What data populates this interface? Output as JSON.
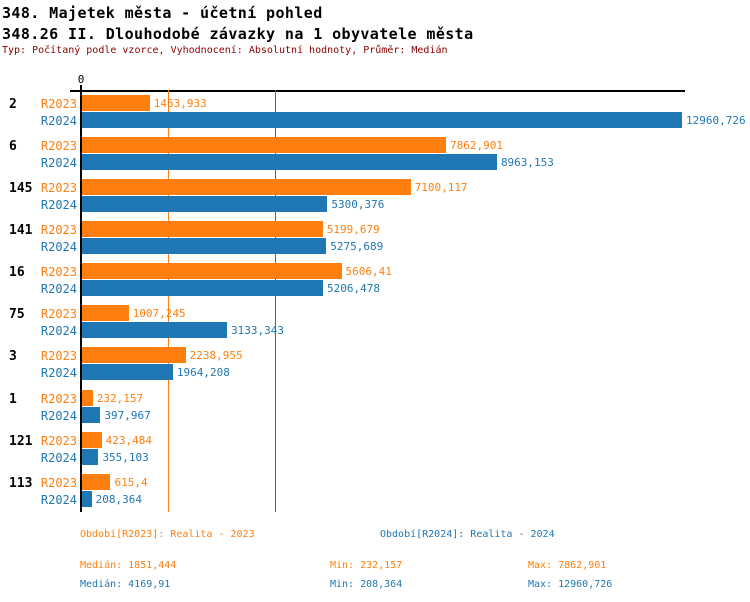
{
  "header": {
    "title": "348. Majetek města - účetní pohled",
    "subtitle": "348.26 II. Dlouhodobé závazky na 1 obyvatele města",
    "type_line": "Typ: Počítaný podle vzorce, Vyhodnocení: Absolutní hodnoty, Průměr: Medián"
  },
  "colors": {
    "r2023": "#ff7f0e",
    "r2024": "#1f77b4",
    "type_line": "#8b0000",
    "axis": "#000000"
  },
  "chart_data": {
    "type": "bar",
    "orientation": "horizontal",
    "title": "348.26 II. Dlouhodobé závazky na 1 obyvatele města",
    "categories": [
      "2",
      "6",
      "145",
      "141",
      "16",
      "75",
      "3",
      "1",
      "121",
      "113"
    ],
    "series": [
      {
        "name": "R2023",
        "color_key": "r2023",
        "values": [
          1463.933,
          7862.901,
          7100.117,
          5199.679,
          5606.41,
          1007.245,
          2238.955,
          232.157,
          423.484,
          615.4
        ],
        "labels": [
          "1463,933",
          "7862,901",
          "7100,117",
          "5199,679",
          "5606,41",
          "1007,245",
          "2238,955",
          "232,157",
          "423,484",
          "615,4"
        ]
      },
      {
        "name": "R2024",
        "color_key": "r2024",
        "values": [
          12960.726,
          8963.153,
          5300.376,
          5275.689,
          5206.478,
          3133.343,
          1964.208,
          397.967,
          355.103,
          208.364
        ],
        "labels": [
          "12960,726",
          "8963,153",
          "5300,376",
          "5275,689",
          "5206,478",
          "3133,343",
          "1964,208",
          "397,967",
          "355,103",
          "208,364"
        ]
      }
    ],
    "axis": {
      "zero_label": "0",
      "min": 0,
      "max": 12960.726,
      "side": "top"
    },
    "median_lines": [
      {
        "series": "R2023",
        "value": 1851.444,
        "color_key": "r2023"
      },
      {
        "series": "R2024",
        "value": 4169.91,
        "color_key": "r2024"
      }
    ],
    "grid": false,
    "legend_position": "bottom"
  },
  "footer": {
    "legend": [
      {
        "series": "R2023",
        "label": "Období[R2023]: Realita - 2023"
      },
      {
        "series": "R2024",
        "label": "Období[R2024]: Realita - 2024"
      }
    ],
    "stats": [
      {
        "series": "R2023",
        "median": "Medián: 1851,444",
        "min": "Min: 232,157",
        "max": "Max: 7862,901"
      },
      {
        "series": "R2024",
        "median": "Medián: 4169,91",
        "min": "Min: 208,364",
        "max": "Max: 12960,726"
      }
    ]
  }
}
